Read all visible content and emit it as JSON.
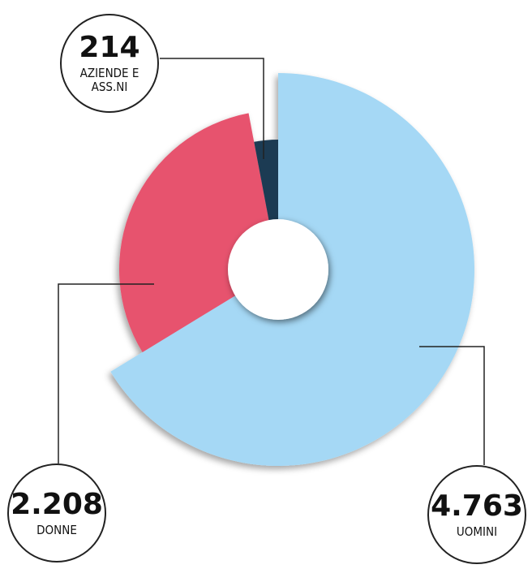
{
  "chart_data": {
    "type": "pie",
    "categories": [
      "UOMINI",
      "DONNE",
      "AZIENDE E ASS.NI"
    ],
    "values": [
      4763,
      2208,
      214
    ],
    "value_labels": [
      "4.763",
      "2.208",
      "214"
    ],
    "colors": [
      "#a5d8f5",
      "#e7536e",
      "#1e3a52"
    ]
  }
}
